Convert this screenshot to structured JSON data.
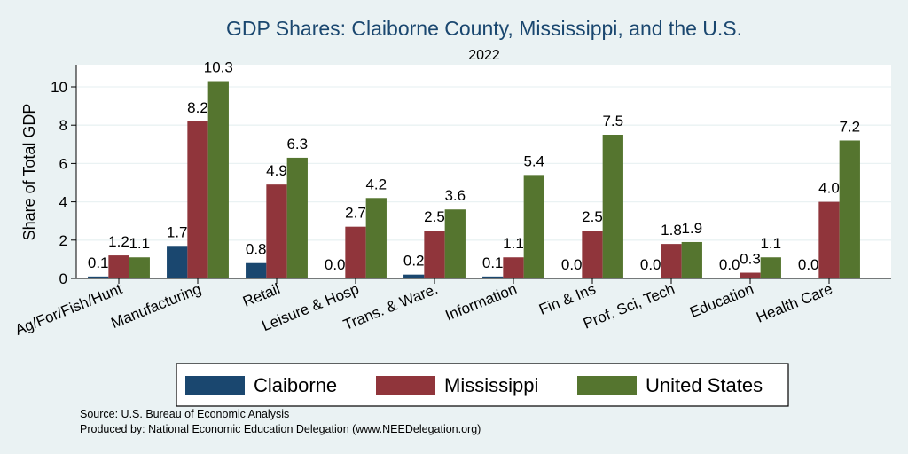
{
  "chart_data": {
    "type": "bar",
    "title": "GDP Shares: Claiborne County, Mississippi, and the U.S.",
    "subtitle": "2022",
    "ylabel": "Share of Total GDP",
    "ylim": [
      0,
      11
    ],
    "yticks": [
      0,
      2,
      4,
      6,
      8,
      10
    ],
    "grid": true,
    "legend_position": "bottom",
    "categories": [
      "Ag/For/Fish/Hunt",
      "Manufacturing",
      "Retail",
      "Leisure & Hosp",
      "Trans. & Ware.",
      "Information",
      "Fin & Ins",
      "Prof, Sci, Tech",
      "Education",
      "Health Care"
    ],
    "series": [
      {
        "name": "Claiborne",
        "color": "#1a476f",
        "values": [
          0.1,
          1.7,
          0.8,
          0.0,
          0.2,
          0.1,
          0.0,
          0.0,
          0.0,
          0.0
        ],
        "labels": [
          "0.1",
          "1.7",
          "0.8",
          "0.0",
          "0.2",
          "0.1",
          "0.0",
          "0.0",
          "0.0",
          "0.0"
        ]
      },
      {
        "name": "Mississippi",
        "color": "#90353b",
        "values": [
          1.2,
          8.2,
          4.9,
          2.7,
          2.5,
          1.1,
          2.5,
          1.8,
          0.3,
          4.0
        ],
        "labels": [
          "1.2",
          "8.2",
          "4.9",
          "2.7",
          "2.5",
          "1.1",
          "2.5",
          "1.8",
          "0.3",
          "4.0"
        ]
      },
      {
        "name": "United States",
        "color": "#55752f",
        "values": [
          1.1,
          10.3,
          6.3,
          4.2,
          3.6,
          5.4,
          7.5,
          1.9,
          1.1,
          7.2
        ],
        "labels": [
          "1.1",
          "10.3",
          "6.3",
          "4.2",
          "3.6",
          "5.4",
          "7.5",
          "1.9",
          "1.1",
          "7.2"
        ]
      }
    ]
  },
  "notes": {
    "source": "Source: U.S. Bureau of Economic Analysis",
    "produced_by": "Produced by: National Economic Education Delegation (www.NEEDelegation.org)"
  }
}
